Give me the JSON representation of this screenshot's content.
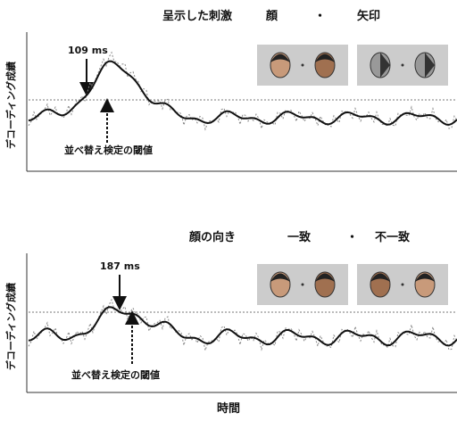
{
  "panels": [
    {
      "title_parts": [
        "呈示した刺激",
        "顔",
        "・",
        "矢印"
      ],
      "y_label": "デコーディング成績",
      "peak_label": "109 ms",
      "threshold_label": "並べ替え検定の閾値"
    },
    {
      "title_parts": [
        "顔の向き",
        "一致",
        "・",
        "不一致"
      ],
      "y_label": "デコーディング成績",
      "peak_label": "187 ms",
      "threshold_label": "並べ替え検定の閾値"
    }
  ],
  "x_label": "時間"
}
